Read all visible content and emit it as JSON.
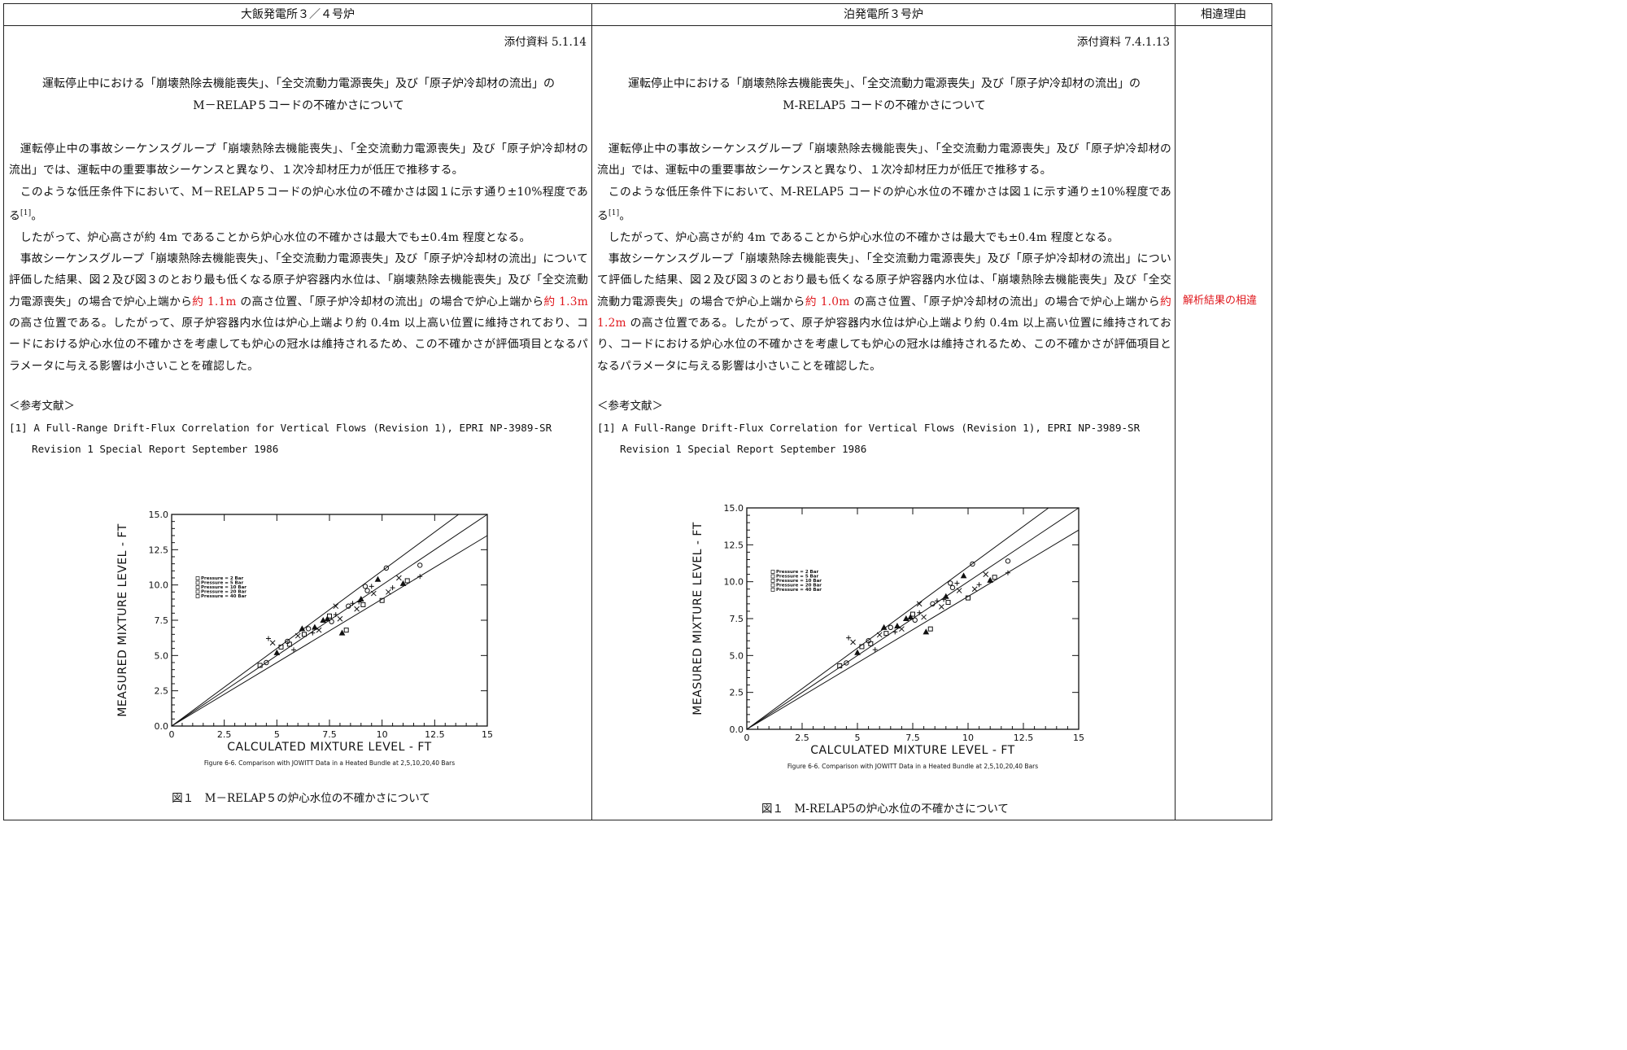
{
  "header": {
    "left": "大飯発電所３／４号炉",
    "middle": "泊発電所３号炉",
    "right": "相違理由"
  },
  "left": {
    "attachment": "添付資料 5.1.14",
    "title_line1": "運転停止中における「崩壊熱除去機能喪失」、「全交流動力電源喪失」及び「原子炉冷却材の流出」の",
    "title_line2": "M－RELAP５コードの不確かさについて",
    "p1": "運転停止中の事故シーケンスグループ「崩壊熱除去機能喪失」、「全交流動力電源喪失」及び「原子炉冷却材の流出」では、運転中の重要事故シーケンスと異なり、１次冷却材圧力が低圧で推移する。",
    "p2": "このような低圧条件下において、M－RELAP５コードの炉心水位の不確かさは図１に示す通り±10%程度である[1]。",
    "p3": "したがって、炉心高さが約 4m であることから炉心水位の不確かさは最大でも±0.4m 程度となる。",
    "p4_a": "事故シーケンスグループ「崩壊熱除去機能喪失」、「全交流動力電源喪失」及び「原子炉冷却材の流出」について評価した結果、図２及び図３のとおり最も低くなる原子炉容器内水位は、「崩壊熱除去機能喪失」及び「全交流動力電源喪失」の場合で炉心上端から",
    "p4_red1": "約 1.1m",
    "p4_b": " の高さ位置、「原子炉冷却材の流出」の場合で炉心上端から",
    "p4_red2": "約 1.3m",
    "p4_c": " の高さ位置である。したがって、原子炉容器内水位は炉心上端より約 0.4m 以上高い位置に維持されており、コードにおける炉心水位の不確かさを考慮しても炉心の冠水は維持されるため、この不確かさが評価項目となるパラメータに与える影響は小さいことを確認した。",
    "refs_head": "＜参考文献＞",
    "ref1": "[1] A Full-Range Drift-Flux Correlation for Vertical Flows (Revision 1), EPRI NP-3989-SR",
    "ref1_cont": "Revision 1 Special Report September 1986",
    "caption": "図１　M－RELAP５の炉心水位の不確かさについて"
  },
  "middle": {
    "attachment": "添付資料 7.4.1.13",
    "title_line1": "運転停止中における「崩壊熱除去機能喪失」、「全交流動力電源喪失」及び「原子炉冷却材の流出」の",
    "title_line2": "M-RELAP5 コードの不確かさについて",
    "p1": "運転停止中の事故シーケンスグループ「崩壊熱除去機能喪失」、「全交流動力電源喪失」及び「原子炉冷却材の流出」では、運転中の重要事故シーケンスと異なり、１次冷却材圧力が低圧で推移する。",
    "p2": "このような低圧条件下において、M-RELAP5 コードの炉心水位の不確かさは図１に示す通り±10%程度である[1]。",
    "p3": "したがって、炉心高さが約 4m であることから炉心水位の不確かさは最大でも±0.4m 程度となる。",
    "p4_a": "事故シーケンスグループ「崩壊熱除去機能喪失」、「全交流動力電源喪失」及び「原子炉冷却材の流出」について評価した結果、図２及び図３のとおり最も低くなる原子炉容器内水位は、「崩壊熱除去機能喪失」及び「全交流動力電源喪失」の場合で炉心上端から",
    "p4_red1": "約 1.0m",
    "p4_b": " の高さ位置、「原子炉冷却材の流出」の場合で炉心上端から",
    "p4_red2": "約 1.2m",
    "p4_c": " の高さ位置である。したがって、原子炉容器内水位は炉心上端より約 0.4m 以上高い位置に維持されており、コードにおける炉心水位の不確かさを考慮しても炉心の冠水は維持されるため、この不確かさが評価項目となるパラメータに与える影響は小さいことを確認した。",
    "refs_head": "＜参考文献＞",
    "ref1": "[1] A Full-Range Drift-Flux Correlation for Vertical Flows (Revision 1), EPRI NP-3989-SR",
    "ref1_cont": "Revision 1 Special Report September 1986",
    "caption": "図１　M-RELAP5の炉心水位の不確かさについて"
  },
  "reason": {
    "text": "解析結果の相違"
  },
  "chart_data": {
    "type": "scatter",
    "xlabel": "CALCULATED MIXTURE LEVEL - FT",
    "ylabel": "MEASURED MIXTURE LEVEL - FT",
    "xlim": [
      0,
      15
    ],
    "ylim": [
      0,
      15
    ],
    "xticks": [
      "0",
      "2.5",
      "5",
      "7.5",
      "10",
      "12.5",
      "15"
    ],
    "yticks": [
      "0.0",
      "2.5",
      "5.0",
      "7.5",
      "10.0",
      "12.5",
      "15.0"
    ],
    "figure_caption": "Figure 6-6.  Comparison with JOWITT Data in a Heated Bundle at 2,5,10,20,40 Bars",
    "legend": [
      "Pressure = 2 Bar",
      "Pressure = 5 Bar",
      "Pressure = 10 Bar",
      "Pressure = 20 Bar",
      "Pressure = 40 Bar"
    ],
    "reference_lines": [
      {
        "slope": 1.1,
        "label": "+10%"
      },
      {
        "slope": 1.0,
        "label": "1:1"
      },
      {
        "slope": 0.9,
        "label": "-10%"
      }
    ],
    "points": [
      [
        4.2,
        4.3
      ],
      [
        4.5,
        4.5
      ],
      [
        4.6,
        6.2
      ],
      [
        4.8,
        5.9
      ],
      [
        5.0,
        5.2
      ],
      [
        5.2,
        5.6
      ],
      [
        5.5,
        6.0
      ],
      [
        5.8,
        5.4
      ],
      [
        6.0,
        6.4
      ],
      [
        6.2,
        6.9
      ],
      [
        6.3,
        6.5
      ],
      [
        6.5,
        6.9
      ],
      [
        6.7,
        6.6
      ],
      [
        7.0,
        6.8
      ],
      [
        7.2,
        7.5
      ],
      [
        7.5,
        7.8
      ],
      [
        7.6,
        7.4
      ],
      [
        7.8,
        7.9
      ],
      [
        8.0,
        7.6
      ],
      [
        8.1,
        6.6
      ],
      [
        8.3,
        6.8
      ],
      [
        8.4,
        8.5
      ],
      [
        8.6,
        8.7
      ],
      [
        8.8,
        8.3
      ],
      [
        9.0,
        9.0
      ],
      [
        9.1,
        8.6
      ],
      [
        9.3,
        9.6
      ],
      [
        9.5,
        9.9
      ],
      [
        9.6,
        9.4
      ],
      [
        9.8,
        10.4
      ],
      [
        10.0,
        8.9
      ],
      [
        10.2,
        11.2
      ],
      [
        10.5,
        9.8
      ],
      [
        10.8,
        10.5
      ],
      [
        11.0,
        10.1
      ],
      [
        11.2,
        10.3
      ],
      [
        11.8,
        11.4
      ],
      [
        11.8,
        10.6
      ],
      [
        7.8,
        8.5
      ],
      [
        6.8,
        7.0
      ],
      [
        5.6,
        5.8
      ],
      [
        9.2,
        9.9
      ],
      [
        8.9,
        8.8
      ],
      [
        10.3,
        9.5
      ],
      [
        7.4,
        7.6
      ]
    ]
  }
}
